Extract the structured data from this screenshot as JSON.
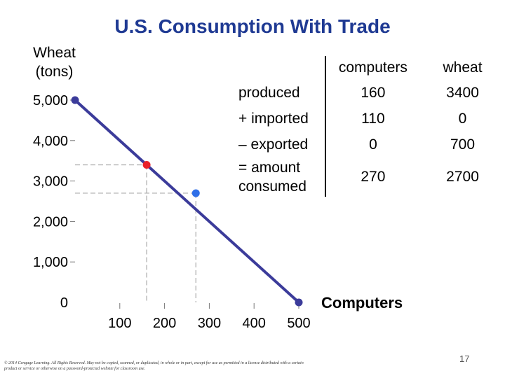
{
  "slide": {
    "title": "U.S. Consumption With Trade",
    "credit": "© 2014 Cengage Learning. All Rights Reserved. May not be copied, scanned, or duplicated, in whole or in part, except for use as permitted in a license distributed with a certain product or service or otherwise on a password-protected website for classroom use.",
    "page_number": "17"
  },
  "table": {
    "headers": [
      "",
      "computers",
      "wheat"
    ],
    "rows": [
      {
        "label": "produced",
        "computers": "160",
        "wheat": "3400"
      },
      {
        "label": "+ imported",
        "computers": "110",
        "wheat": "0"
      },
      {
        "label": "– exported",
        "computers": "0",
        "wheat": "700"
      },
      {
        "label": "= amount consumed",
        "computers": "270",
        "wheat": "2700"
      }
    ]
  },
  "chart_data": {
    "type": "line",
    "title": "U.S. Consumption With Trade",
    "ylabel": "Wheat (tons)",
    "xlabel": "Computers",
    "xlim": [
      0,
      500
    ],
    "ylim": [
      0,
      5000
    ],
    "x_ticks": [
      100,
      200,
      300,
      400,
      500
    ],
    "x_tick_labels": [
      "100",
      "200",
      "300",
      "400",
      "500"
    ],
    "y_ticks": [
      0,
      1000,
      2000,
      3000,
      4000,
      5000
    ],
    "y_tick_labels": [
      "0",
      "1,000",
      "2,000",
      "3,000",
      "4,000",
      "5,000"
    ],
    "series": [
      {
        "values": [
          [
            0,
            5000
          ],
          [
            500,
            0
          ]
        ],
        "color": "#3b3b9a"
      }
    ],
    "points": [
      {
        "x": 0,
        "y": 5000,
        "color": "#3b3b9a"
      },
      {
        "x": 500,
        "y": 0,
        "color": "#3b3b9a"
      },
      {
        "x": 160,
        "y": 3400,
        "color": "#e8202a"
      },
      {
        "x": 270,
        "y": 2700,
        "color": "#2f6fe8"
      }
    ],
    "grid": false
  }
}
